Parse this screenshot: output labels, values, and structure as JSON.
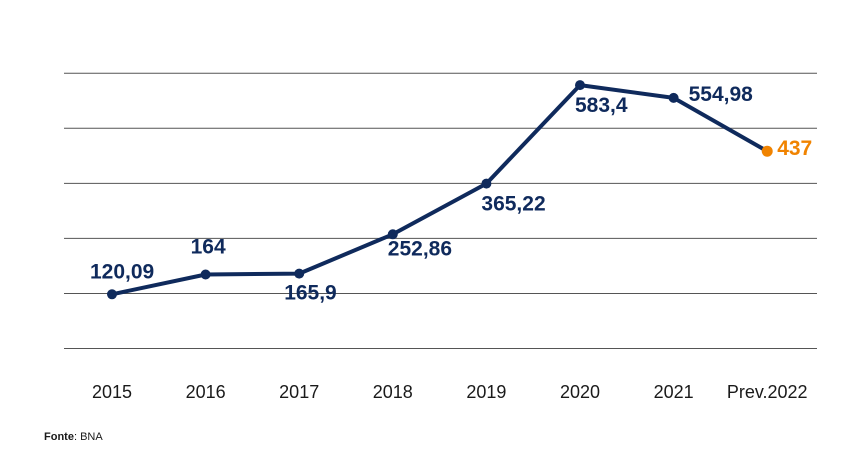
{
  "chart_data": {
    "type": "line",
    "title": "",
    "xlabel": "",
    "ylabel": "",
    "categories": [
      "2015",
      "2016",
      "2017",
      "2018",
      "2019",
      "2020",
      "2021",
      "Prev.2022"
    ],
    "values": [
      120.09,
      164,
      165.9,
      252.86,
      365.22,
      583.4,
      554.98,
      437
    ],
    "value_labels": [
      "120,09",
      "164",
      "165,9",
      "252,86",
      "365,22",
      "583,4",
      "554,98",
      "437"
    ],
    "highlight_index": 7,
    "ylim": [
      0,
      600
    ],
    "grid": true,
    "legend": "none"
  },
  "colors": {
    "series": "#0f2a5c",
    "highlight": "#f08300",
    "grid": "#555555"
  },
  "source": {
    "prefix": "Fonte",
    "text": ": BNA"
  }
}
